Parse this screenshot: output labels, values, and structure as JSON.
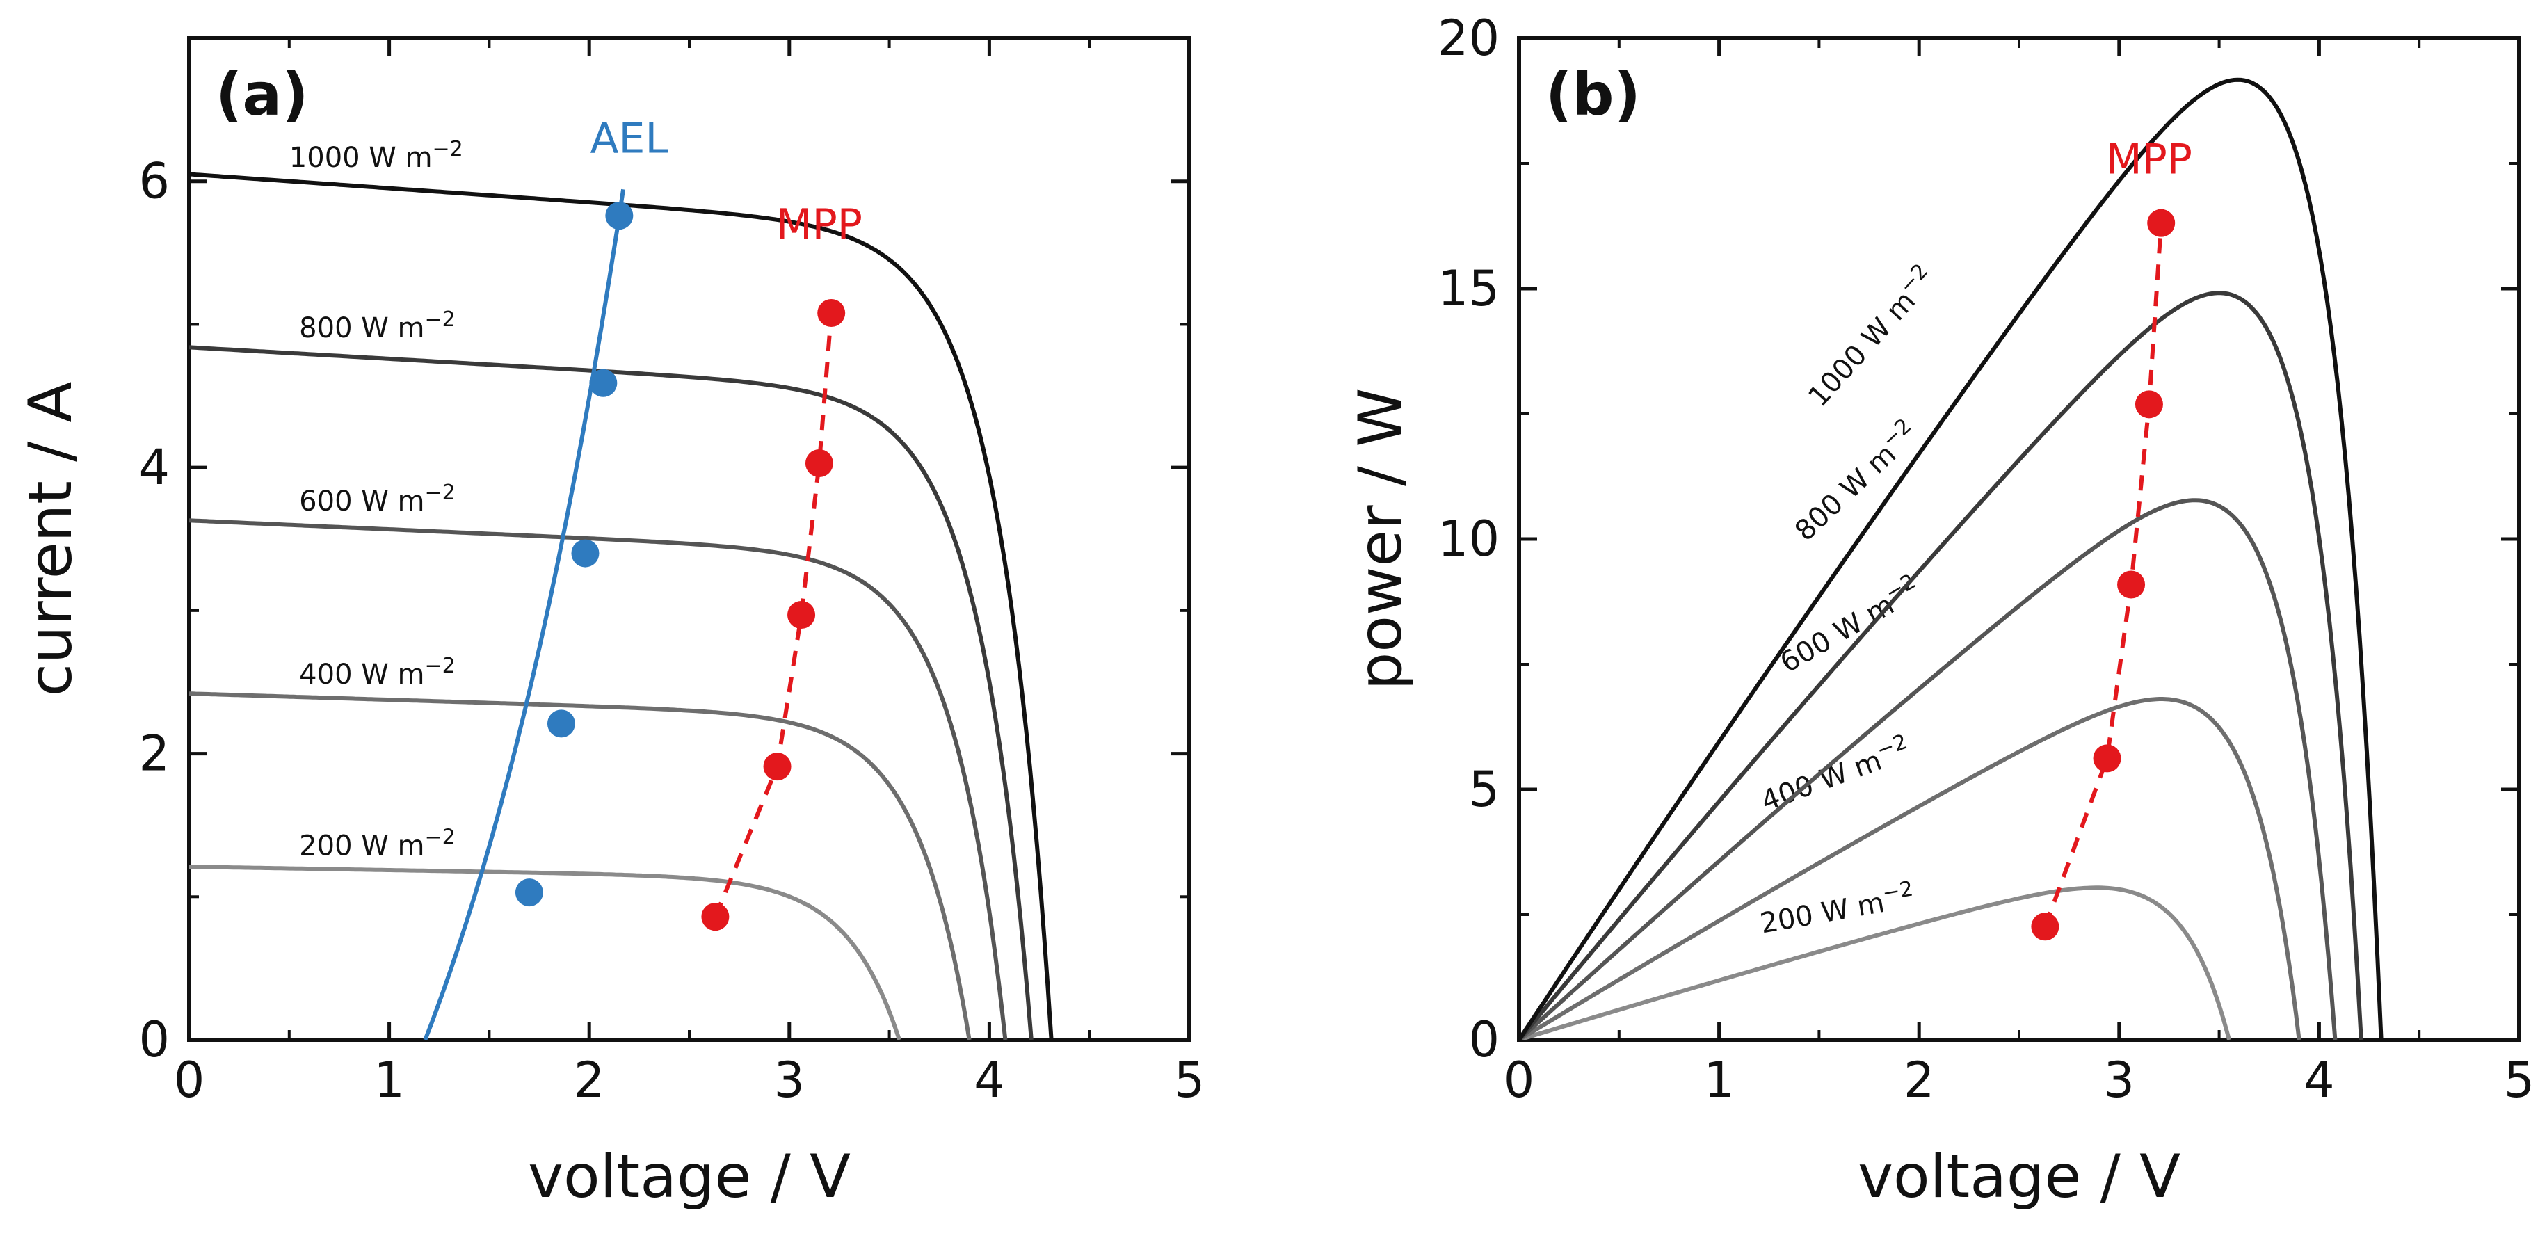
{
  "colors": {
    "irradiance": [
      "#8a8a8a",
      "#6e6e6e",
      "#555555",
      "#3a3a3a",
      "#111111"
    ],
    "mpp": "#e3181d",
    "ael": "#2f7bbf",
    "axes": "#111111"
  },
  "chart_data": [
    {
      "type": "line",
      "panel_label": "(a)",
      "xlabel": "voltage / V",
      "ylabel": "current / A",
      "xlim": [
        0,
        5
      ],
      "ylim": [
        0,
        7
      ],
      "xticks": [
        0,
        1,
        2,
        3,
        4,
        5
      ],
      "yticks": [
        0,
        2,
        4,
        6
      ],
      "grid": false,
      "series": [
        {
          "name": "200 W m^-2",
          "label_base": "200 W m",
          "label_exp": "−2",
          "isc": 1.21,
          "voc": 3.55,
          "label_at": [
            0.55,
            1.29
          ]
        },
        {
          "name": "400 W m^-2",
          "label_base": "400 W m",
          "label_exp": "−2",
          "isc": 2.42,
          "voc": 3.9,
          "label_at": [
            0.55,
            2.49
          ]
        },
        {
          "name": "600 W m^-2",
          "label_base": "600 W m",
          "label_exp": "−2",
          "isc": 3.63,
          "voc": 4.08,
          "label_at": [
            0.55,
            3.7
          ]
        },
        {
          "name": "800 W m^-2",
          "label_base": "800 W m",
          "label_exp": "−2",
          "isc": 4.84,
          "voc": 4.21,
          "label_at": [
            0.55,
            4.91
          ]
        },
        {
          "name": "1000 W m^-2",
          "label_base": "1000 W m",
          "label_exp": "−2",
          "isc": 6.05,
          "voc": 4.31,
          "label_at": [
            0.5,
            6.1
          ]
        }
      ],
      "mpp": {
        "label": "MPP",
        "label_at": [
          3.15,
          5.6
        ],
        "points": [
          [
            2.63,
            0.86
          ],
          [
            2.94,
            1.91
          ],
          [
            3.06,
            2.97
          ],
          [
            3.15,
            4.03
          ],
          [
            3.21,
            5.08
          ]
        ]
      },
      "ael": {
        "label": "AEL",
        "label_at": [
          2.2,
          6.2
        ],
        "points": [
          [
            1.7,
            1.03
          ],
          [
            1.86,
            2.21
          ],
          [
            1.98,
            3.4
          ],
          [
            2.07,
            4.59
          ],
          [
            2.15,
            5.76
          ]
        ]
      }
    },
    {
      "type": "line",
      "panel_label": "(b)",
      "xlabel": "voltage / V",
      "ylabel": "power / W",
      "xlim": [
        0,
        5
      ],
      "ylim": [
        0,
        20
      ],
      "xticks": [
        0,
        1,
        2,
        3,
        4,
        5
      ],
      "yticks": [
        0,
        5,
        10,
        15,
        20
      ],
      "grid": false,
      "series": [
        {
          "name": "200 W m^-2",
          "label_base": "200 W m",
          "label_exp": "−2",
          "label_at": [
            1.6,
            2.4
          ],
          "label_rot": -10
        },
        {
          "name": "400 W m^-2",
          "label_base": "400 W m",
          "label_exp": "−2",
          "label_at": [
            1.6,
            5.1
          ],
          "label_rot": -20
        },
        {
          "name": "600 W m^-2",
          "label_base": "600 W m",
          "label_exp": "−2",
          "label_at": [
            1.68,
            8.1
          ],
          "label_rot": -30
        },
        {
          "name": "800 W m^-2",
          "label_base": "800 W m",
          "label_exp": "−2",
          "label_at": [
            1.72,
            11.0
          ],
          "label_rot": -43
        },
        {
          "name": "1000 W m^-2",
          "label_base": "1000 W m",
          "label_exp": "−2",
          "label_at": [
            1.8,
            13.9
          ],
          "label_rot": -48
        }
      ],
      "mpp": {
        "label": "MPP",
        "label_at": [
          3.15,
          17.3
        ],
        "points": [
          [
            2.63,
            2.26
          ],
          [
            2.94,
            5.62
          ],
          [
            3.06,
            9.09
          ],
          [
            3.15,
            12.69
          ],
          [
            3.21,
            16.31
          ]
        ]
      }
    }
  ]
}
